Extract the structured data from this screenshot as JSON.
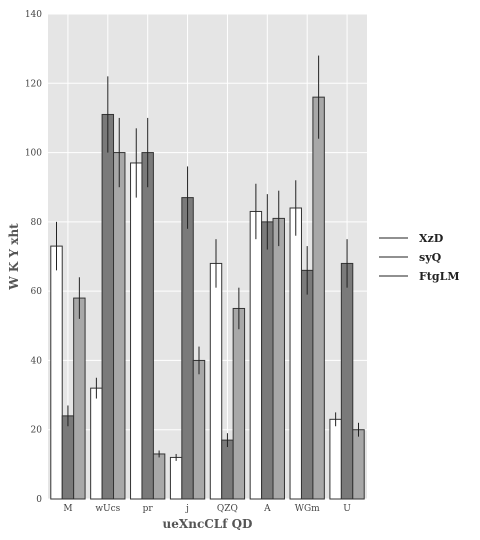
{
  "chart_data": {
    "type": "bar",
    "title": "",
    "xlabel": "ueXncCLf QD",
    "ylabel": "W K Y  xht",
    "ylim": [
      0,
      140
    ],
    "yticks": [
      "0",
      "20",
      "40",
      "60",
      "80",
      "100",
      "120",
      "140"
    ],
    "categories": [
      "M",
      "wUcs",
      "pr",
      "j",
      "QZQ",
      "A",
      "WGm",
      "U"
    ],
    "series": [
      {
        "name": "XzD",
        "color": "#ffffff",
        "values": [
          73,
          32,
          97,
          12,
          68,
          83,
          84,
          23
        ],
        "errors": [
          7,
          3,
          10,
          1,
          7,
          8,
          8,
          2
        ]
      },
      {
        "name": "syQ",
        "color": "#7a7a7a",
        "values": [
          24,
          111,
          100,
          87,
          17,
          80,
          66,
          68
        ],
        "errors": [
          3,
          11,
          10,
          9,
          2,
          8,
          7,
          7
        ]
      },
      {
        "name": "FtgLM",
        "color": "#a8a8a8",
        "values": [
          58,
          100,
          13,
          40,
          55,
          81,
          116,
          20
        ],
        "errors": [
          6,
          10,
          1,
          4,
          6,
          8,
          12,
          2
        ]
      }
    ],
    "grid": true,
    "background": "#e5e5e5",
    "legend_position": "right"
  }
}
